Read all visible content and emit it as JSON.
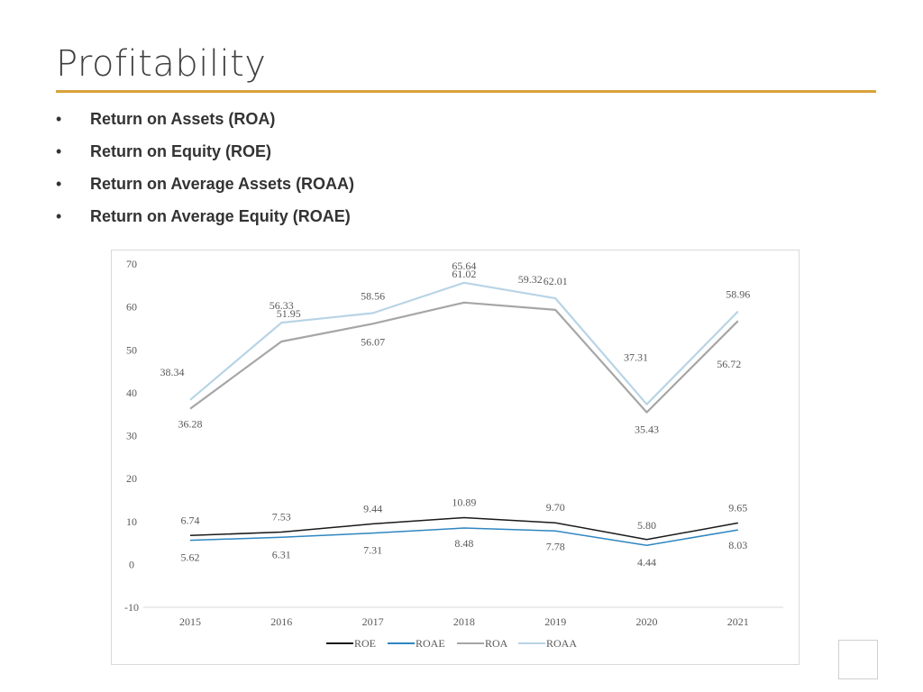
{
  "title": "Profitability",
  "bullets": [
    {
      "marker": "•",
      "text": "Return on Assets (ROA)"
    },
    {
      "marker": "•",
      "text": "Return on Equity (ROE)"
    },
    {
      "marker": "•",
      "text": "Return on Average Assets (ROAA)"
    },
    {
      "marker": "•",
      "text": "Return on Average Equity (ROAE)"
    }
  ],
  "colors": {
    "accent_rule": "#d9a23a",
    "ROE": "#1a1a1a",
    "ROAE": "#2e86c1",
    "ROA": "#a6a6a6",
    "ROAA": "#b8d4e6"
  },
  "chart_data": {
    "type": "line",
    "x": [
      "2015",
      "2016",
      "2017",
      "2018",
      "2019",
      "2020",
      "2021"
    ],
    "ylim": [
      -10,
      70
    ],
    "yticks": [
      -10,
      0,
      10,
      20,
      30,
      40,
      50,
      60,
      70
    ],
    "grid": false,
    "legend": "bottom",
    "series": [
      {
        "name": "ROE",
        "values": [
          6.74,
          7.53,
          9.44,
          10.89,
          9.7,
          5.8,
          9.65
        ],
        "labels": [
          "6.74",
          "7.53",
          "9.44",
          "10.89",
          "9.70",
          "5.80",
          "9.65"
        ]
      },
      {
        "name": "ROAE",
        "values": [
          5.62,
          6.31,
          7.31,
          8.48,
          7.78,
          4.44,
          8.03
        ],
        "labels": [
          "5.62",
          "6.31",
          "7.31",
          "8.48",
          "7.78",
          "4.44",
          "8.03"
        ]
      },
      {
        "name": "ROA",
        "values": [
          36.28,
          51.95,
          56.07,
          61.02,
          59.32,
          35.43,
          56.72
        ],
        "labels": [
          "36.28",
          "51.95",
          "56.07",
          "61.02",
          "59.32",
          "35.43",
          "56.72"
        ]
      },
      {
        "name": "ROAA",
        "values": [
          38.34,
          56.33,
          58.56,
          65.64,
          62.01,
          37.31,
          58.96
        ],
        "labels": [
          "38.34",
          "56.33",
          "58.56",
          "65.64",
          "62.01",
          "37.31",
          "58.96"
        ]
      }
    ]
  }
}
